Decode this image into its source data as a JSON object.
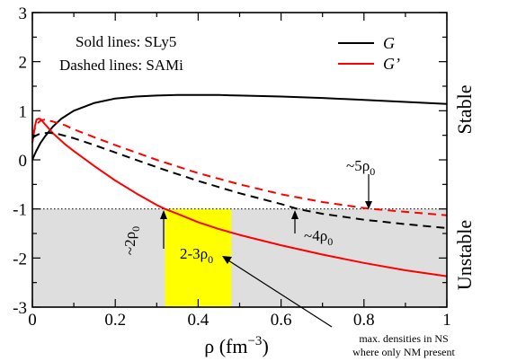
{
  "chart_data": {
    "type": "line",
    "xlabel": "ρ  (fm",
    "xlabel_sup": "−3",
    "xlabel_close": ")",
    "xlim": [
      0,
      1
    ],
    "ylim": [
      -3,
      3
    ],
    "x_ticks": [
      0,
      0.2,
      0.4,
      0.6,
      0.8,
      1
    ],
    "x_tick_labels": [
      "0",
      "0.2",
      "0.4",
      "0.6",
      "0.8",
      "1"
    ],
    "y_ticks": [
      -3,
      -2,
      -1,
      0,
      1,
      2,
      3
    ],
    "y_tick_labels": [
      "-3",
      "-2",
      "-1",
      "0",
      "1",
      "2",
      "3"
    ],
    "stability_threshold": -1,
    "unstable_region_color": "#dedede",
    "highlight_band": {
      "x": [
        0.32,
        0.48
      ],
      "color": "#ffff00"
    },
    "legend": {
      "position": "top-right",
      "entries": [
        {
          "label": "G",
          "color": "#000000"
        },
        {
          "label": "G’",
          "color": "#ff0000"
        }
      ]
    },
    "notes": {
      "solid": "Sold lines: SLy5",
      "dashed": "Dashed lines: SAMi"
    },
    "side_labels": {
      "upper": "Stable",
      "lower": "Unstable"
    },
    "series": [
      {
        "name": "G",
        "color": "#000000",
        "dash": false,
        "x": [
          0,
          0.005,
          0.01,
          0.02,
          0.03,
          0.05,
          0.07,
          0.1,
          0.15,
          0.2,
          0.25,
          0.3,
          0.35,
          0.4,
          0.45,
          0.5,
          0.6,
          0.7,
          0.8,
          0.9,
          1.0
        ],
        "y": [
          0,
          0.1,
          0.19,
          0.35,
          0.47,
          0.68,
          0.84,
          1.0,
          1.16,
          1.25,
          1.29,
          1.31,
          1.32,
          1.32,
          1.32,
          1.31,
          1.29,
          1.26,
          1.22,
          1.18,
          1.14
        ]
      },
      {
        "name": "G’",
        "color": "#ff0000",
        "dash": false,
        "x": [
          0,
          0.003,
          0.006,
          0.01,
          0.015,
          0.02,
          0.03,
          0.05,
          0.08,
          0.1,
          0.15,
          0.2,
          0.25,
          0.3,
          0.32,
          0.35,
          0.4,
          0.45,
          0.5,
          0.6,
          0.7,
          0.8,
          0.9,
          1.0
        ],
        "y": [
          0.35,
          0.5,
          0.68,
          0.82,
          0.84,
          0.83,
          0.73,
          0.54,
          0.31,
          0.18,
          -0.13,
          -0.42,
          -0.68,
          -0.92,
          -1.0,
          -1.1,
          -1.27,
          -1.41,
          -1.53,
          -1.74,
          -1.93,
          -2.1,
          -2.25,
          -2.37
        ]
      },
      {
        "name": "",
        "color": "#000000",
        "dash": true,
        "x": [
          0,
          0.01,
          0.02,
          0.04,
          0.06,
          0.1,
          0.15,
          0.2,
          0.3,
          0.4,
          0.5,
          0.6,
          0.64,
          0.7,
          0.8,
          0.9,
          1.0
        ],
        "y": [
          0.45,
          0.5,
          0.54,
          0.55,
          0.53,
          0.44,
          0.3,
          0.15,
          -0.15,
          -0.43,
          -0.68,
          -0.9,
          -1.0,
          -1.1,
          -1.22,
          -1.31,
          -1.39
        ]
      },
      {
        "name": "",
        "color": "#ff0000",
        "dash": true,
        "x": [
          0,
          0.01,
          0.02,
          0.03,
          0.05,
          0.08,
          0.1,
          0.15,
          0.2,
          0.3,
          0.4,
          0.5,
          0.6,
          0.7,
          0.8,
          0.82,
          0.9,
          1.0
        ],
        "y": [
          0.5,
          0.72,
          0.8,
          0.82,
          0.78,
          0.7,
          0.62,
          0.46,
          0.3,
          0.0,
          -0.27,
          -0.5,
          -0.7,
          -0.86,
          -0.98,
          -1.0,
          -1.06,
          -1.13
        ]
      }
    ],
    "annotations": [
      {
        "text": "~5ρ",
        "sub": "0",
        "x": 0.815,
        "y": -0.05
      },
      {
        "text": "~2ρ",
        "sub": "0",
        "x": 0.255,
        "y": -1.12
      },
      {
        "text": "~4ρ",
        "sub": "0",
        "x": 0.67,
        "y": -1.42
      },
      {
        "text": "2-3ρ",
        "sub": "0",
        "x": 0.4,
        "y": -1.75
      }
    ],
    "footnote": [
      "max. densities in NS",
      "where only NM present"
    ]
  }
}
